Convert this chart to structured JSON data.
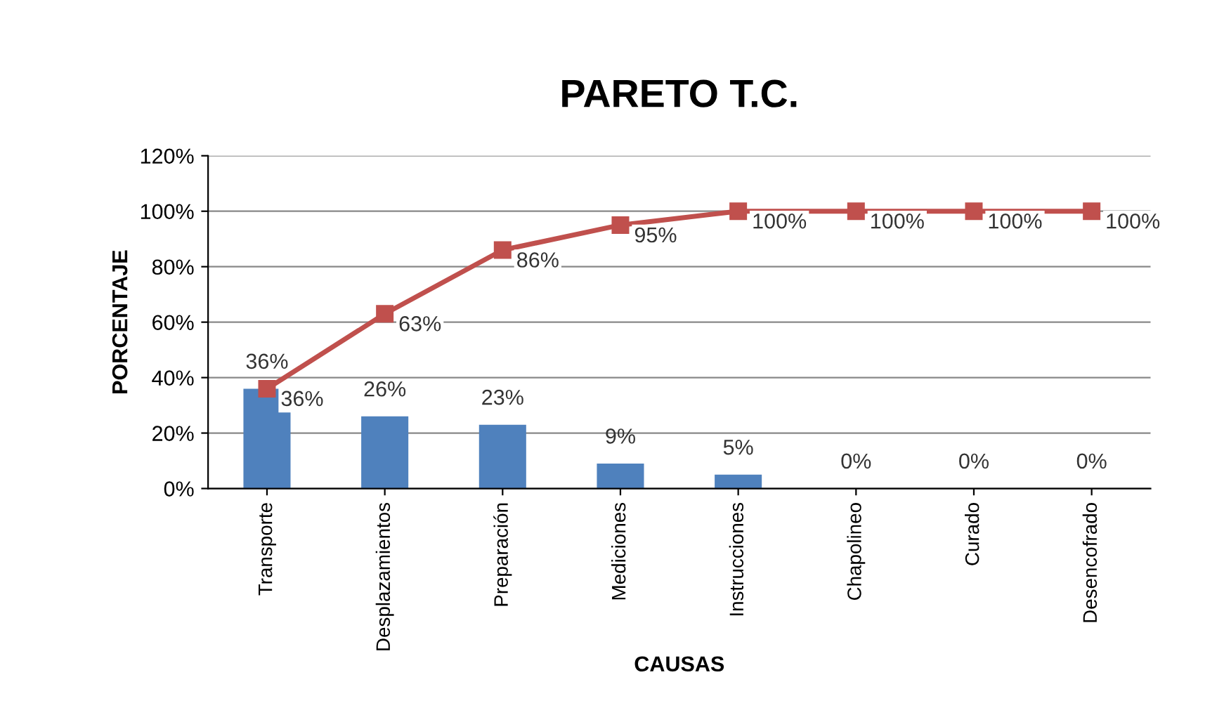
{
  "chart_data": {
    "type": "bar",
    "title": "PARETO T.C.",
    "xlabel": "CAUSAS",
    "ylabel": "PORCENTAJE",
    "categories": [
      "Transporte",
      "Desplazamientos",
      "Preparación",
      "Mediciones",
      "Instrucciones",
      "Chapolineo",
      "Curado",
      "Desencofrado"
    ],
    "series": [
      {
        "color": "#4f81bd",
        "values": [
          36,
          26,
          23,
          9,
          5,
          0,
          0,
          0
        ],
        "value_labels": [
          "36%",
          "26%",
          "23%",
          "9%",
          "5%",
          "0%",
          "0%",
          "0%"
        ]
      },
      {
        "type": "line",
        "color": "#c0504d",
        "marker": "square",
        "line_style": "solid",
        "values": [
          36,
          63,
          86,
          95,
          100,
          100,
          100,
          100
        ],
        "value_labels": [
          "36%",
          "63%",
          "86%",
          "95%",
          "100%",
          "100%",
          "100%",
          "100%"
        ]
      }
    ],
    "ylim": [
      0,
      120
    ],
    "yticks": [
      {
        "value": 0,
        "label": "0%"
      },
      {
        "value": 20,
        "label": "20%"
      },
      {
        "value": 40,
        "label": "40%"
      },
      {
        "value": 60,
        "label": "60%"
      },
      {
        "value": 80,
        "label": "80%"
      },
      {
        "value": 100,
        "label": "100%"
      },
      {
        "value": 120,
        "label": "120%"
      }
    ],
    "grid": "y",
    "legend": false
  }
}
